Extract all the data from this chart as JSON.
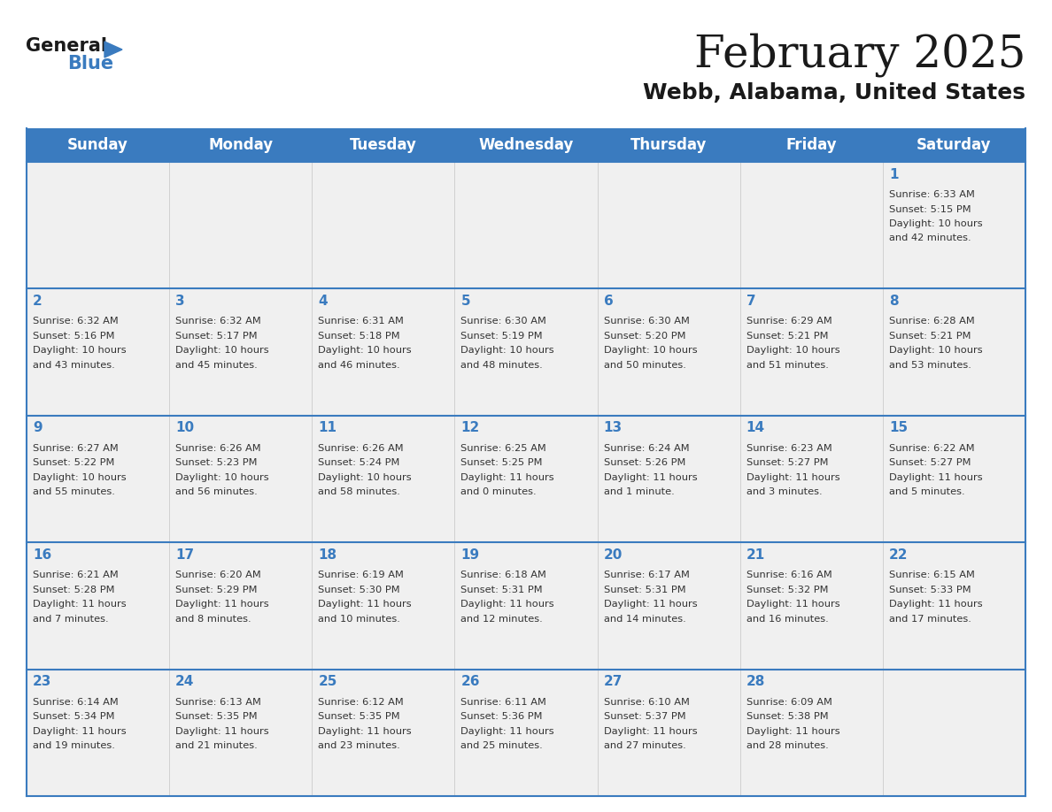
{
  "title": "February 2025",
  "subtitle": "Webb, Alabama, United States",
  "days_of_week": [
    "Sunday",
    "Monday",
    "Tuesday",
    "Wednesday",
    "Thursday",
    "Friday",
    "Saturday"
  ],
  "header_bg": "#3a7bbf",
  "header_text": "#ffffff",
  "row_bg": "#f0f0f0",
  "border_color": "#3a7bbf",
  "day_number_color": "#3a7bbf",
  "cell_text_color": "#333333",
  "calendar_data": [
    [
      null,
      null,
      null,
      null,
      null,
      null,
      {
        "day": "1",
        "sunrise": "6:33 AM",
        "sunset": "5:15 PM",
        "daylight": "10 hours",
        "daylight2": "and 42 minutes."
      }
    ],
    [
      {
        "day": "2",
        "sunrise": "6:32 AM",
        "sunset": "5:16 PM",
        "daylight": "10 hours",
        "daylight2": "and 43 minutes."
      },
      {
        "day": "3",
        "sunrise": "6:32 AM",
        "sunset": "5:17 PM",
        "daylight": "10 hours",
        "daylight2": "and 45 minutes."
      },
      {
        "day": "4",
        "sunrise": "6:31 AM",
        "sunset": "5:18 PM",
        "daylight": "10 hours",
        "daylight2": "and 46 minutes."
      },
      {
        "day": "5",
        "sunrise": "6:30 AM",
        "sunset": "5:19 PM",
        "daylight": "10 hours",
        "daylight2": "and 48 minutes."
      },
      {
        "day": "6",
        "sunrise": "6:30 AM",
        "sunset": "5:20 PM",
        "daylight": "10 hours",
        "daylight2": "and 50 minutes."
      },
      {
        "day": "7",
        "sunrise": "6:29 AM",
        "sunset": "5:21 PM",
        "daylight": "10 hours",
        "daylight2": "and 51 minutes."
      },
      {
        "day": "8",
        "sunrise": "6:28 AM",
        "sunset": "5:21 PM",
        "daylight": "10 hours",
        "daylight2": "and 53 minutes."
      }
    ],
    [
      {
        "day": "9",
        "sunrise": "6:27 AM",
        "sunset": "5:22 PM",
        "daylight": "10 hours",
        "daylight2": "and 55 minutes."
      },
      {
        "day": "10",
        "sunrise": "6:26 AM",
        "sunset": "5:23 PM",
        "daylight": "10 hours",
        "daylight2": "and 56 minutes."
      },
      {
        "day": "11",
        "sunrise": "6:26 AM",
        "sunset": "5:24 PM",
        "daylight": "10 hours",
        "daylight2": "and 58 minutes."
      },
      {
        "day": "12",
        "sunrise": "6:25 AM",
        "sunset": "5:25 PM",
        "daylight": "11 hours",
        "daylight2": "and 0 minutes."
      },
      {
        "day": "13",
        "sunrise": "6:24 AM",
        "sunset": "5:26 PM",
        "daylight": "11 hours",
        "daylight2": "and 1 minute."
      },
      {
        "day": "14",
        "sunrise": "6:23 AM",
        "sunset": "5:27 PM",
        "daylight": "11 hours",
        "daylight2": "and 3 minutes."
      },
      {
        "day": "15",
        "sunrise": "6:22 AM",
        "sunset": "5:27 PM",
        "daylight": "11 hours",
        "daylight2": "and 5 minutes."
      }
    ],
    [
      {
        "day": "16",
        "sunrise": "6:21 AM",
        "sunset": "5:28 PM",
        "daylight": "11 hours",
        "daylight2": "and 7 minutes."
      },
      {
        "day": "17",
        "sunrise": "6:20 AM",
        "sunset": "5:29 PM",
        "daylight": "11 hours",
        "daylight2": "and 8 minutes."
      },
      {
        "day": "18",
        "sunrise": "6:19 AM",
        "sunset": "5:30 PM",
        "daylight": "11 hours",
        "daylight2": "and 10 minutes."
      },
      {
        "day": "19",
        "sunrise": "6:18 AM",
        "sunset": "5:31 PM",
        "daylight": "11 hours",
        "daylight2": "and 12 minutes."
      },
      {
        "day": "20",
        "sunrise": "6:17 AM",
        "sunset": "5:31 PM",
        "daylight": "11 hours",
        "daylight2": "and 14 minutes."
      },
      {
        "day": "21",
        "sunrise": "6:16 AM",
        "sunset": "5:32 PM",
        "daylight": "11 hours",
        "daylight2": "and 16 minutes."
      },
      {
        "day": "22",
        "sunrise": "6:15 AM",
        "sunset": "5:33 PM",
        "daylight": "11 hours",
        "daylight2": "and 17 minutes."
      }
    ],
    [
      {
        "day": "23",
        "sunrise": "6:14 AM",
        "sunset": "5:34 PM",
        "daylight": "11 hours",
        "daylight2": "and 19 minutes."
      },
      {
        "day": "24",
        "sunrise": "6:13 AM",
        "sunset": "5:35 PM",
        "daylight": "11 hours",
        "daylight2": "and 21 minutes."
      },
      {
        "day": "25",
        "sunrise": "6:12 AM",
        "sunset": "5:35 PM",
        "daylight": "11 hours",
        "daylight2": "and 23 minutes."
      },
      {
        "day": "26",
        "sunrise": "6:11 AM",
        "sunset": "5:36 PM",
        "daylight": "11 hours",
        "daylight2": "and 25 minutes."
      },
      {
        "day": "27",
        "sunrise": "6:10 AM",
        "sunset": "5:37 PM",
        "daylight": "11 hours",
        "daylight2": "and 27 minutes."
      },
      {
        "day": "28",
        "sunrise": "6:09 AM",
        "sunset": "5:38 PM",
        "daylight": "11 hours",
        "daylight2": "and 28 minutes."
      },
      null
    ]
  ]
}
